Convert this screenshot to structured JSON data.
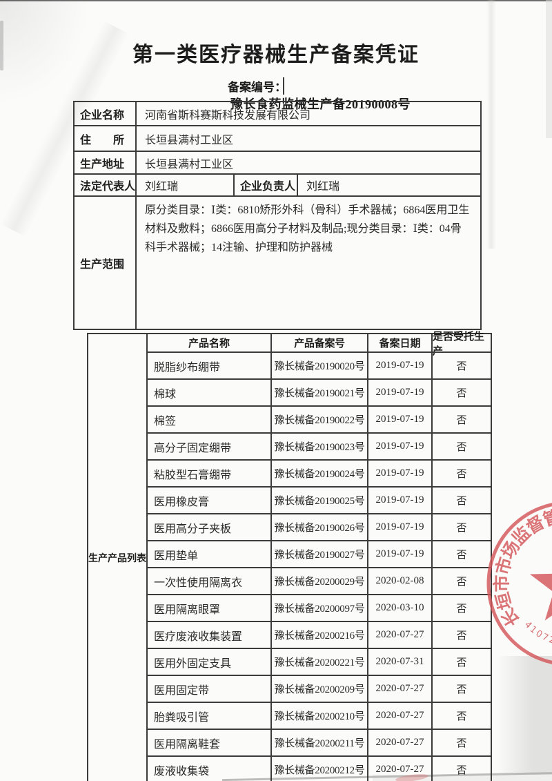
{
  "page": {
    "title": "第一类医疗器械生产备案凭证",
    "record_no_label": "备案编号：",
    "record_no_value": "豫长食药监械生产备20190008号"
  },
  "company": {
    "name_label": "企业名称",
    "name": "河南省斯科赛斯科技发展有限公司",
    "residence_label": "住　　所",
    "residence": "长垣县满村工业区",
    "production_address_label": "生产地址",
    "production_address": "长垣县满村工业区",
    "legal_rep_label": "法定代表人",
    "legal_rep": "刘红瑞",
    "manager_label": "企业负责人",
    "manager": "刘红瑞",
    "scope_label": "生产范围",
    "scope": "原分类目录：Ⅰ类：6810矫形外科（骨科）手术器械；6864医用卫生材料及敷料；6866医用高分子材料及制品;现分类目录：Ⅰ类：04骨科手术器械；14注输、护理和防护器械"
  },
  "products": {
    "section_label": "生产产品列表",
    "headers": [
      "产品名称",
      "产品备案号",
      "备案日期",
      "是否受托生产"
    ],
    "rows": [
      [
        "脱脂纱布绷带",
        "豫长械备20190020号",
        "2019-07-19",
        "否"
      ],
      [
        "棉球",
        "豫长械备20190021号",
        "2019-07-19",
        "否"
      ],
      [
        "棉签",
        "豫长械备20190022号",
        "2019-07-19",
        "否"
      ],
      [
        "高分子固定绷带",
        "豫长械备20190023号",
        "2019-07-19",
        "否"
      ],
      [
        "粘胶型石膏绷带",
        "豫长械备20190024号",
        "2019-07-19",
        "否"
      ],
      [
        "医用橡皮膏",
        "豫长械备20190025号",
        "2019-07-19",
        "否"
      ],
      [
        "医用高分子夹板",
        "豫长械备20190026号",
        "2019-07-19",
        "否"
      ],
      [
        "医用垫单",
        "豫长械备20190027号",
        "2019-07-19",
        "否"
      ],
      [
        "一次性使用隔离衣",
        "豫长械备20200029号",
        "2020-02-08",
        "否"
      ],
      [
        "医用隔离眼罩",
        "豫长械备20200097号",
        "2020-03-10",
        "否"
      ],
      [
        "医疗废液收集装置",
        "豫长械备20200216号",
        "2020-07-27",
        "否"
      ],
      [
        "医用外固定支具",
        "豫长械备20200221号",
        "2020-07-31",
        "否"
      ],
      [
        "医用固定带",
        "豫长械备20200209号",
        "2020-07-27",
        "否"
      ],
      [
        "胎粪吸引管",
        "豫长械备20200210号",
        "2020-07-27",
        "否"
      ],
      [
        "医用隔离鞋套",
        "豫长械备20200211号",
        "2020-07-27",
        "否"
      ],
      [
        "废液收集袋",
        "豫长械备20200212号",
        "2020-07-27",
        "否"
      ]
    ]
  },
  "stamp": {
    "ring_text": "长垣市市场监督管理局",
    "serial": "41072",
    "color": "#d4575a"
  }
}
